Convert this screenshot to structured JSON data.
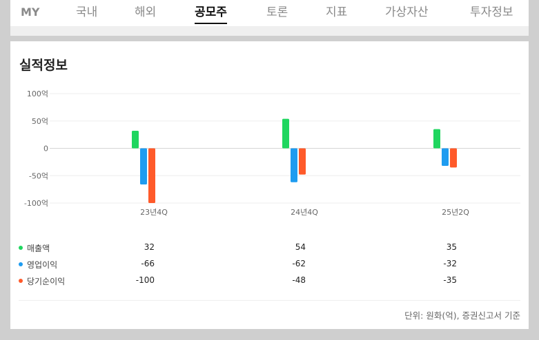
{
  "nav": {
    "tabs": [
      {
        "label": "MY",
        "active": false
      },
      {
        "label": "국내",
        "active": false
      },
      {
        "label": "해외",
        "active": false
      },
      {
        "label": "공모주",
        "active": true
      },
      {
        "label": "토론",
        "active": false
      },
      {
        "label": "지표",
        "active": false
      },
      {
        "label": "가상자산",
        "active": false
      },
      {
        "label": "투자정보",
        "active": false
      }
    ]
  },
  "card": {
    "title": "실적정보",
    "footnote": "단위: 원화(억), 증권신고서 기준"
  },
  "colors": {
    "sales": "#1fd65f",
    "operating": "#1e9cf0",
    "net": "#ff5a2a"
  },
  "chart_data": {
    "type": "bar",
    "categories": [
      "23년4Q",
      "24년4Q",
      "25년2Q"
    ],
    "yticks": [
      "100억",
      "50억",
      "0",
      "-50억",
      "-100억"
    ],
    "ylim": [
      -100,
      100
    ],
    "series": [
      {
        "name": "매출액",
        "color": "#1fd65f",
        "values": [
          32,
          54,
          35
        ]
      },
      {
        "name": "영업이익",
        "color": "#1e9cf0",
        "values": [
          -66,
          -62,
          -32
        ]
      },
      {
        "name": "당기순이익",
        "color": "#ff5a2a",
        "values": [
          -100,
          -48,
          -35
        ]
      }
    ],
    "grid": true
  }
}
